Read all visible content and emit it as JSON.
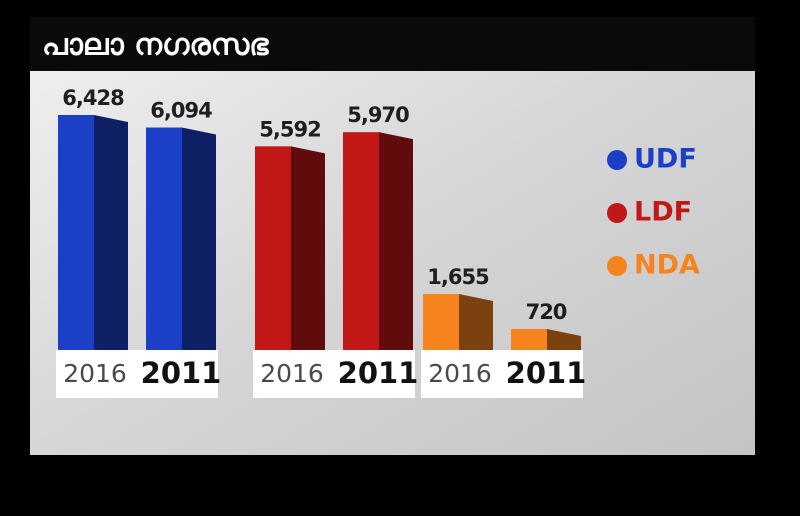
{
  "chart_data": {
    "type": "bar",
    "title": "പാലാ നഗരസഭ",
    "categories": [
      "2016",
      "2011"
    ],
    "series": [
      {
        "name": "UDF",
        "color": "#1b3fc6",
        "values": [
          6428,
          6094
        ],
        "value_labels": [
          "6,428",
          "6,094"
        ]
      },
      {
        "name": "LDF",
        "color": "#c21717",
        "values": [
          5592,
          5970
        ],
        "value_labels": [
          "5,592",
          "5,970"
        ]
      },
      {
        "name": "NDA",
        "color": "#f5841f",
        "values": [
          1655,
          720
        ],
        "value_labels": [
          "1,655",
          "720"
        ]
      }
    ]
  }
}
